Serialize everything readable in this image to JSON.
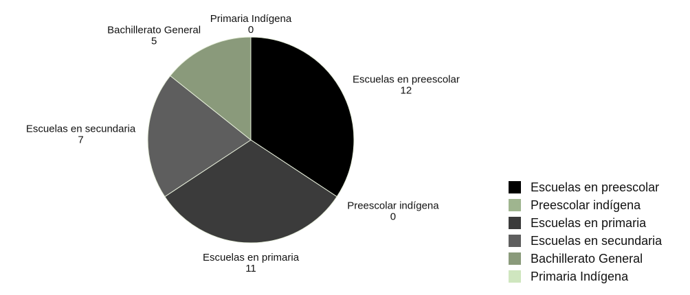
{
  "chart_data": {
    "type": "pie",
    "categories": [
      "Escuelas en preescolar",
      "Preescolar indígena",
      "Escuelas en primaria",
      "Escuelas en secundaria",
      "Bachillerato General",
      "Primaria Indígena"
    ],
    "values": [
      12,
      0,
      11,
      7,
      5,
      0
    ],
    "colors": [
      "#000000",
      "#9fb58f",
      "#3b3b3b",
      "#5e5e5e",
      "#8a9a7b",
      "#cfe6bf"
    ],
    "legend": "right"
  }
}
